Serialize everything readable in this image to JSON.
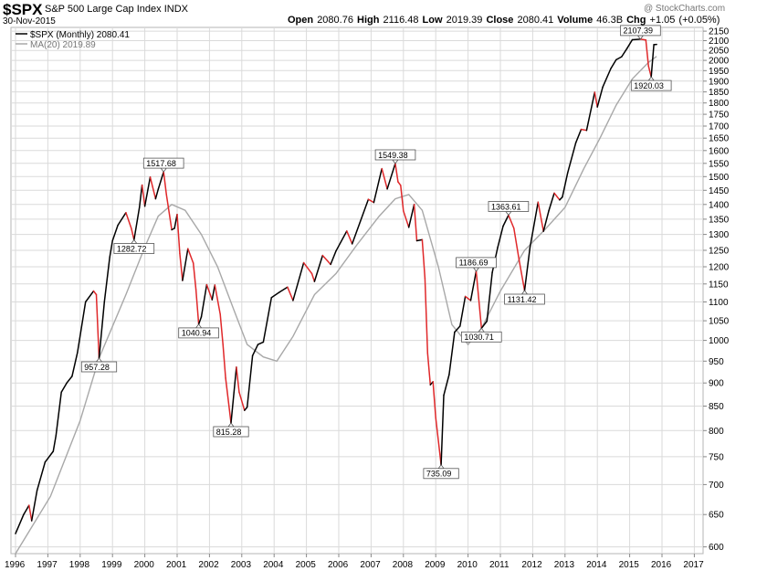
{
  "header": {
    "symbol": "$SPX",
    "name": "S&P 500 Large Cap Index",
    "exchange": "INDX",
    "date": "30-Nov-2015",
    "watermark": "@ StockCharts.com",
    "open_label": "Open",
    "open": "2080.76",
    "high_label": "High",
    "high": "2116.48",
    "low_label": "Low",
    "low": "2019.39",
    "close_label": "Close",
    "close": "2080.41",
    "volume_label": "Volume",
    "volume": "46.3B",
    "chg_label": "Chg",
    "chg": "+1.05 (+0.05%)"
  },
  "legend": {
    "price": "$SPX (Monthly) 2080.41",
    "ma": "MA(20) 2019.89"
  },
  "colors": {
    "up": "#000000",
    "down": "#e0282a",
    "ma": "#a8a8a8",
    "grid": "#dadada",
    "background": "#ffffff"
  },
  "chart_data": {
    "type": "line",
    "title": "$SPX S&P 500 Large Cap Index",
    "x_label": "",
    "y_label": "",
    "y_scale": "log",
    "y_range": [
      590,
      2170
    ],
    "x_range": [
      "1996-01",
      "2017-12"
    ],
    "grid": true,
    "legend_position": "top-left",
    "x_ticks": [
      "1996",
      "1997",
      "1998",
      "1999",
      "2000",
      "2001",
      "2002",
      "2003",
      "2004",
      "2005",
      "2006",
      "2007",
      "2008",
      "2009",
      "2010",
      "2011",
      "2012",
      "2013",
      "2014",
      "2015",
      "2016",
      "2017"
    ],
    "y_ticks": [
      600,
      650,
      700,
      750,
      800,
      850,
      900,
      950,
      1000,
      1050,
      1100,
      1150,
      1200,
      1250,
      1300,
      1350,
      1400,
      1450,
      1500,
      1550,
      1600,
      1650,
      1700,
      1750,
      1800,
      1850,
      1900,
      1950,
      2000,
      2050,
      2100,
      2150
    ],
    "series": [
      {
        "name": "$SPX (Monthly)",
        "points": [
          [
            "1996-01",
            620
          ],
          [
            "1996-04",
            650
          ],
          [
            "1996-06",
            665
          ],
          [
            "1996-07",
            640
          ],
          [
            "1996-09",
            690
          ],
          [
            "1996-12",
            740
          ],
          [
            "1997-03",
            760
          ],
          [
            "1997-04",
            790
          ],
          [
            "1997-06",
            880
          ],
          [
            "1997-08",
            900
          ],
          [
            "1997-10",
            915
          ],
          [
            "1997-12",
            970
          ],
          [
            "1998-03",
            1100
          ],
          [
            "1998-06",
            1130
          ],
          [
            "1998-07",
            1120
          ],
          [
            "1998-08",
            957.28
          ],
          [
            "1998-10",
            1100
          ],
          [
            "1998-12",
            1229
          ],
          [
            "1999-01",
            1280
          ],
          [
            "1999-03",
            1330
          ],
          [
            "1999-06",
            1372
          ],
          [
            "1999-08",
            1320
          ],
          [
            "1999-09",
            1282.72
          ],
          [
            "1999-11",
            1390
          ],
          [
            "1999-12",
            1469
          ],
          [
            "2000-01",
            1394
          ],
          [
            "2000-03",
            1498
          ],
          [
            "2000-05",
            1420
          ],
          [
            "2000-06",
            1454
          ],
          [
            "2000-08",
            1517.68
          ],
          [
            "2000-09",
            1436
          ],
          [
            "2000-11",
            1315
          ],
          [
            "2000-12",
            1320
          ],
          [
            "2001-01",
            1366
          ],
          [
            "2001-02",
            1240
          ],
          [
            "2001-03",
            1160
          ],
          [
            "2001-05",
            1255
          ],
          [
            "2001-07",
            1211
          ],
          [
            "2001-08",
            1134
          ],
          [
            "2001-09",
            1040.94
          ],
          [
            "2001-10",
            1060
          ],
          [
            "2001-12",
            1148
          ],
          [
            "2002-02",
            1106
          ],
          [
            "2002-03",
            1147
          ],
          [
            "2002-05",
            1067
          ],
          [
            "2002-06",
            990
          ],
          [
            "2002-07",
            911
          ],
          [
            "2002-09",
            815.28
          ],
          [
            "2002-11",
            936
          ],
          [
            "2002-12",
            880
          ],
          [
            "2003-02",
            841
          ],
          [
            "2003-03",
            848
          ],
          [
            "2003-05",
            963
          ],
          [
            "2003-07",
            990
          ],
          [
            "2003-09",
            996
          ],
          [
            "2003-12",
            1112
          ],
          [
            "2004-03",
            1127
          ],
          [
            "2004-06",
            1141
          ],
          [
            "2004-08",
            1104
          ],
          [
            "2004-12",
            1212
          ],
          [
            "2005-03",
            1180
          ],
          [
            "2005-04",
            1157
          ],
          [
            "2005-07",
            1234
          ],
          [
            "2005-10",
            1207
          ],
          [
            "2005-12",
            1248
          ],
          [
            "2006-04",
            1311
          ],
          [
            "2006-06",
            1270
          ],
          [
            "2006-12",
            1418
          ],
          [
            "2007-02",
            1407
          ],
          [
            "2007-05",
            1530
          ],
          [
            "2007-07",
            1455
          ],
          [
            "2007-10",
            1549.38
          ],
          [
            "2007-11",
            1481
          ],
          [
            "2007-12",
            1468
          ],
          [
            "2008-01",
            1378
          ],
          [
            "2008-03",
            1323
          ],
          [
            "2008-05",
            1400
          ],
          [
            "2008-06",
            1280
          ],
          [
            "2008-08",
            1283
          ],
          [
            "2008-09",
            1166
          ],
          [
            "2008-10",
            969
          ],
          [
            "2008-11",
            896
          ],
          [
            "2008-12",
            903
          ],
          [
            "2009-01",
            826
          ],
          [
            "2009-03",
            735.09
          ],
          [
            "2009-04",
            873
          ],
          [
            "2009-06",
            919
          ],
          [
            "2009-08",
            1021
          ],
          [
            "2009-10",
            1036
          ],
          [
            "2009-12",
            1115
          ],
          [
            "2010-02",
            1104
          ],
          [
            "2010-04",
            1186.69
          ],
          [
            "2010-06",
            1030.71
          ],
          [
            "2010-08",
            1049
          ],
          [
            "2010-10",
            1183
          ],
          [
            "2010-12",
            1258
          ],
          [
            "2011-02",
            1327
          ],
          [
            "2011-04",
            1363.61
          ],
          [
            "2011-06",
            1320
          ],
          [
            "2011-08",
            1219
          ],
          [
            "2011-10",
            1131.42
          ],
          [
            "2011-12",
            1258
          ],
          [
            "2012-03",
            1408
          ],
          [
            "2012-05",
            1310
          ],
          [
            "2012-07",
            1379
          ],
          [
            "2012-09",
            1440
          ],
          [
            "2012-11",
            1416
          ],
          [
            "2012-12",
            1426
          ],
          [
            "2013-02",
            1514
          ],
          [
            "2013-05",
            1631
          ],
          [
            "2013-07",
            1686
          ],
          [
            "2013-09",
            1682
          ],
          [
            "2013-12",
            1848
          ],
          [
            "2014-01",
            1782
          ],
          [
            "2014-03",
            1872
          ],
          [
            "2014-06",
            1960
          ],
          [
            "2014-08",
            2003
          ],
          [
            "2014-10",
            2018
          ],
          [
            "2014-12",
            2059
          ],
          [
            "2015-02",
            2105
          ],
          [
            "2015-05",
            2107.39
          ],
          [
            "2015-07",
            2104
          ],
          [
            "2015-08",
            1972
          ],
          [
            "2015-09",
            1920.03
          ],
          [
            "2015-10",
            2079
          ],
          [
            "2015-11",
            2080.41
          ]
        ]
      },
      {
        "name": "MA(20)",
        "points": [
          [
            "1996-01",
            590
          ],
          [
            "1997-02",
            680
          ],
          [
            "1998-01",
            820
          ],
          [
            "1998-08",
            957.28
          ],
          [
            "1999-06",
            1120
          ],
          [
            "2000-01",
            1260
          ],
          [
            "2000-06",
            1360
          ],
          [
            "2000-11",
            1400
          ],
          [
            "2001-04",
            1380
          ],
          [
            "2001-10",
            1300
          ],
          [
            "2002-04",
            1200
          ],
          [
            "2002-10",
            1080
          ],
          [
            "2003-03",
            990
          ],
          [
            "2003-09",
            960
          ],
          [
            "2004-02",
            950
          ],
          [
            "2004-08",
            1010
          ],
          [
            "2005-04",
            1120
          ],
          [
            "2005-12",
            1180
          ],
          [
            "2006-08",
            1270
          ],
          [
            "2007-04",
            1360
          ],
          [
            "2007-10",
            1420
          ],
          [
            "2008-03",
            1435
          ],
          [
            "2008-08",
            1380
          ],
          [
            "2009-02",
            1200
          ],
          [
            "2009-07",
            1040
          ],
          [
            "2010-01",
            990
          ],
          [
            "2010-06",
            1030.71
          ],
          [
            "2011-01",
            1130
          ],
          [
            "2011-10",
            1250
          ],
          [
            "2012-06",
            1320
          ],
          [
            "2013-01",
            1390
          ],
          [
            "2013-08",
            1530
          ],
          [
            "2014-02",
            1650
          ],
          [
            "2014-08",
            1790
          ],
          [
            "2015-02",
            1910
          ],
          [
            "2015-08",
            1990
          ],
          [
            "2015-11",
            2019.89
          ]
        ]
      }
    ],
    "annotations": [
      {
        "x": "1998-08",
        "y": 957.28,
        "text": "957.28",
        "pos": "below"
      },
      {
        "x": "1999-09",
        "y": 1282.72,
        "text": "1282.72",
        "pos": "below"
      },
      {
        "x": "2000-08",
        "y": 1517.68,
        "text": "1517.68",
        "pos": "above"
      },
      {
        "x": "2001-09",
        "y": 1040.94,
        "text": "1040.94",
        "pos": "below"
      },
      {
        "x": "2002-09",
        "y": 815.28,
        "text": "815.28",
        "pos": "below"
      },
      {
        "x": "2007-10",
        "y": 1549.38,
        "text": "1549.38",
        "pos": "above"
      },
      {
        "x": "2009-03",
        "y": 735.09,
        "text": "735.09",
        "pos": "below"
      },
      {
        "x": "2010-04",
        "y": 1186.69,
        "text": "1186.69",
        "pos": "above"
      },
      {
        "x": "2010-06",
        "y": 1030.71,
        "text": "1030.71",
        "pos": "below"
      },
      {
        "x": "2011-04",
        "y": 1363.61,
        "text": "1363.61",
        "pos": "above"
      },
      {
        "x": "2011-10",
        "y": 1131.42,
        "text": "1131.42",
        "pos": "below"
      },
      {
        "x": "2015-05",
        "y": 2107.39,
        "text": "2107.39",
        "pos": "above"
      },
      {
        "x": "2015-09",
        "y": 1920.03,
        "text": "1920.03",
        "pos": "below"
      }
    ]
  }
}
